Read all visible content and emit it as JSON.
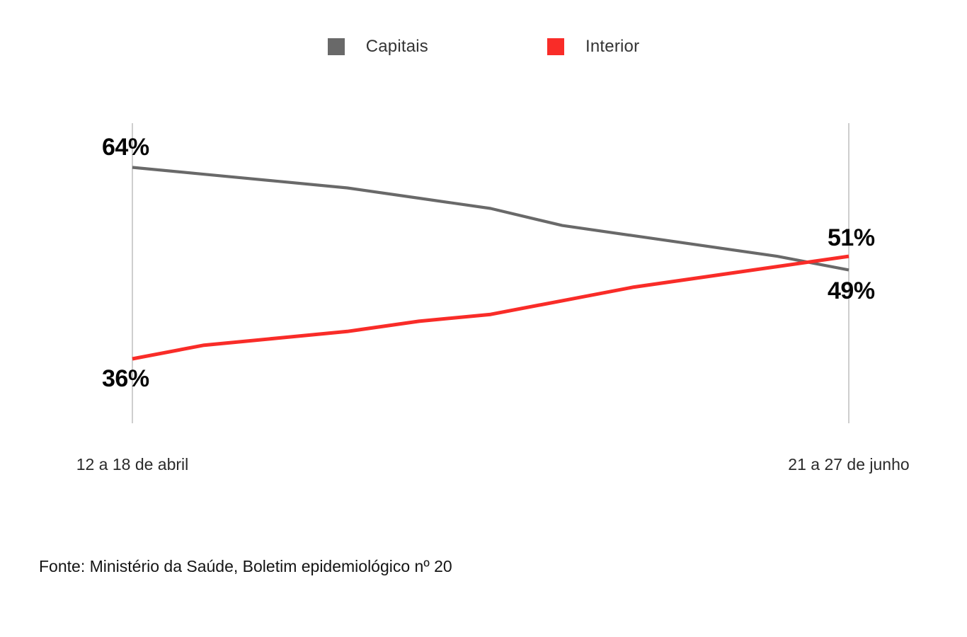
{
  "legend": {
    "items": [
      {
        "label": "Capitais",
        "color": "#696969"
      },
      {
        "label": "Interior",
        "color": "#f92c28"
      }
    ]
  },
  "chart_data": {
    "type": "line",
    "title": "",
    "x_tick_labels": [
      "12 a 18 de abril",
      "21 a 27 de junho"
    ],
    "x_tick_positions": [
      "start",
      "end"
    ],
    "series": [
      {
        "name": "Capitais",
        "color": "#696969",
        "values": [
          64,
          63,
          62,
          61,
          59.5,
          58,
          55.5,
          54,
          52.5,
          51,
          49
        ],
        "start_label": "64%",
        "end_label": "49%"
      },
      {
        "name": "Interior",
        "color": "#f92c28",
        "values": [
          36,
          38,
          39,
          40,
          41.5,
          42.5,
          44.5,
          46.5,
          48,
          49.5,
          51
        ],
        "start_label": "36%",
        "end_label": "51%"
      }
    ],
    "ylim": [
      33,
      70
    ],
    "grid": "none",
    "y_axis_shown": false,
    "edge_axis_lines": true,
    "legend_position": "top-center"
  },
  "annotations": {
    "capitais_start": "64%",
    "capitais_end": "49%",
    "interior_start": "36%",
    "interior_end": "51%"
  },
  "x_axis": {
    "left_label": "12 a 18 de abril",
    "right_label": "21 a 27 de junho"
  },
  "source": {
    "text": "Fonte: Ministério da Saúde, Boletim epidemiológico nº 20"
  },
  "colors": {
    "capitais": "#696969",
    "interior": "#f92c28",
    "axis_line": "#b9b9b9",
    "label_text": "#050505",
    "background": "#ffffff"
  }
}
